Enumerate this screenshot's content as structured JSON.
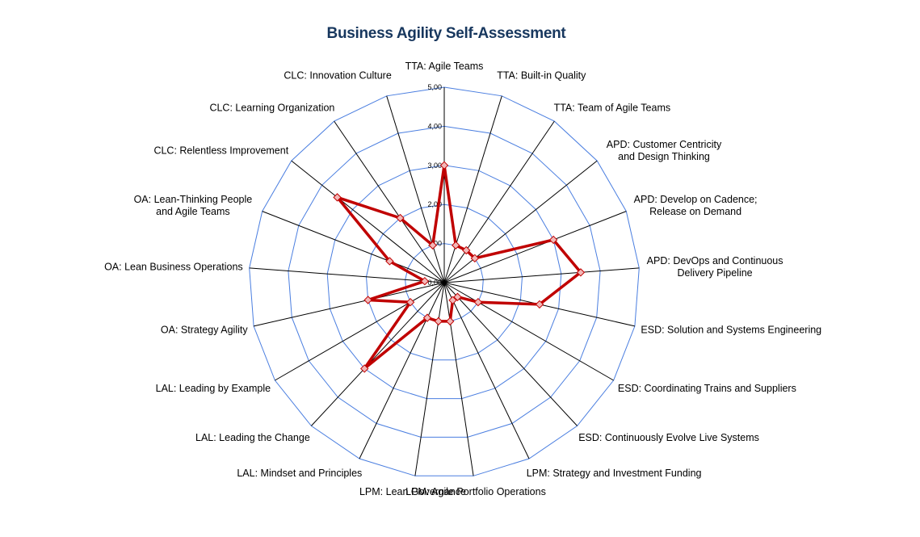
{
  "chart_data": {
    "type": "radar",
    "title": "Business Agility Self-Assessment",
    "categories": [
      "TTA: Agile Teams",
      "TTA: Built-in Quality",
      "TTA: Team of Agile Teams",
      "APD: Customer Centricity and Design Thinking",
      "APD: Develop on Cadence; Release on Demand",
      "APD: DevOps and Continuous Delivery Pipeline",
      "ESD: Solution and Systems Engineering",
      "ESD: Coordinating Trains and Suppliers",
      "ESD: Continuously Evolve Live Systems",
      "LPM: Strategy and Investment Funding",
      "LPM: Agile Portfolio Operations",
      "LPM: Lean Governance",
      "LAL: Mindset and Principles",
      "LAL: Leading the Change",
      "LAL: Leading by Example",
      "OA: Strategy Agility",
      "OA: Lean Business Operations",
      "OA: Lean-Thinking People and Agile Teams",
      "CLC: Relentless Improvement",
      "CLC: Learning Organization",
      "CLC: Innovation Culture"
    ],
    "series": [
      {
        "values": [
          3.0,
          1.0,
          1.0,
          1.0,
          3.0,
          3.5,
          2.5,
          1.0,
          0.5,
          0.5,
          1.0,
          1.0,
          1.0,
          3.0,
          1.0,
          2.0,
          0.5,
          1.5,
          3.5,
          2.0,
          1.0
        ]
      }
    ],
    "ticks": [
      "1,00",
      "2,00",
      "3,00",
      "4,00",
      "5,00"
    ],
    "center_label": "0,00",
    "rmax": 5,
    "legend": "none",
    "colors": {
      "title": "#17375e",
      "grid": "#4a7ee0",
      "spoke": "#000000",
      "series": "#c00000",
      "marker_fill": "#f2b8b8",
      "marker_stroke": "#c00000"
    }
  }
}
